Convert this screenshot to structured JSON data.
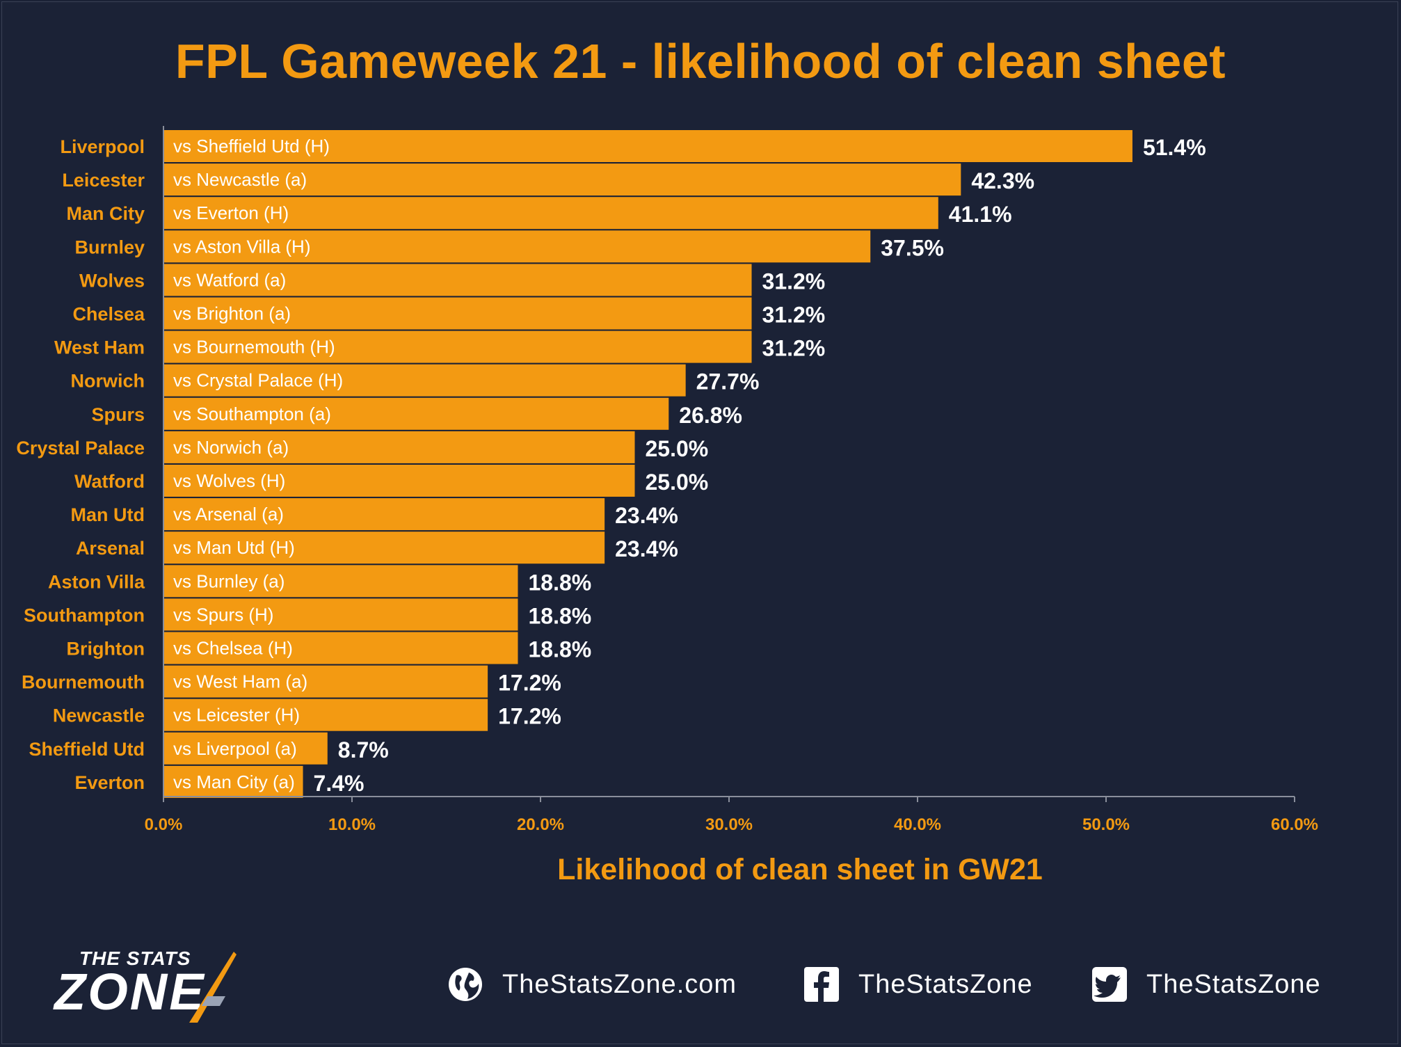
{
  "chart_data": {
    "type": "bar",
    "orientation": "horizontal",
    "title": "FPL Gameweek 21 - likelihood of clean sheet",
    "xlabel": "Likelihood of clean sheet in GW21",
    "ylabel": "",
    "xlim": [
      0,
      60
    ],
    "x_ticks": [
      "0.0%",
      "10.0%",
      "20.0%",
      "30.0%",
      "40.0%",
      "50.0%",
      "60.0%"
    ],
    "grid": false,
    "bar_color": "#f39a12",
    "categories": [
      "Liverpool",
      "Leicester",
      "Man City",
      "Burnley",
      "Wolves",
      "Chelsea",
      "West Ham",
      "Norwich",
      "Spurs",
      "Crystal Palace",
      "Watford",
      "Man Utd",
      "Arsenal",
      "Aston Villa",
      "Southampton",
      "Brighton",
      "Bournemouth",
      "Newcastle",
      "Sheffield Utd",
      "Everton"
    ],
    "fixtures": [
      "vs Sheffield Utd (H)",
      "vs Newcastle (a)",
      "vs Everton (H)",
      "vs Aston Villa (H)",
      "vs Watford (a)",
      "vs Brighton (a)",
      "vs Bournemouth (H)",
      "vs Crystal Palace (H)",
      "vs Southampton (a)",
      "vs Norwich (a)",
      "vs Wolves (H)",
      "vs Arsenal (a)",
      "vs Man Utd (H)",
      "vs Burnley (a)",
      "vs Spurs (H)",
      "vs Chelsea (H)",
      "vs West Ham (a)",
      "vs Leicester (H)",
      "vs Liverpool (a)",
      "vs Man City (a)"
    ],
    "values": [
      51.4,
      42.3,
      41.1,
      37.5,
      31.2,
      31.2,
      31.2,
      27.7,
      26.8,
      25.0,
      25.0,
      23.4,
      23.4,
      18.8,
      18.8,
      18.8,
      17.2,
      17.2,
      8.7,
      7.4
    ],
    "value_labels": [
      "51.4%",
      "42.3%",
      "41.1%",
      "37.5%",
      "31.2%",
      "31.2%",
      "31.2%",
      "27.7%",
      "26.8%",
      "25.0%",
      "25.0%",
      "23.4%",
      "23.4%",
      "18.8%",
      "18.8%",
      "18.8%",
      "17.2%",
      "17.2%",
      "8.7%",
      "7.4%"
    ]
  },
  "branding": {
    "logo_top": "THE STATS",
    "logo_main": "ZONE",
    "website": "TheStatsZone.com",
    "facebook": "TheStatsZone",
    "twitter": "TheStatsZone",
    "icons": [
      "globe-icon",
      "facebook-icon",
      "twitter-icon"
    ]
  }
}
